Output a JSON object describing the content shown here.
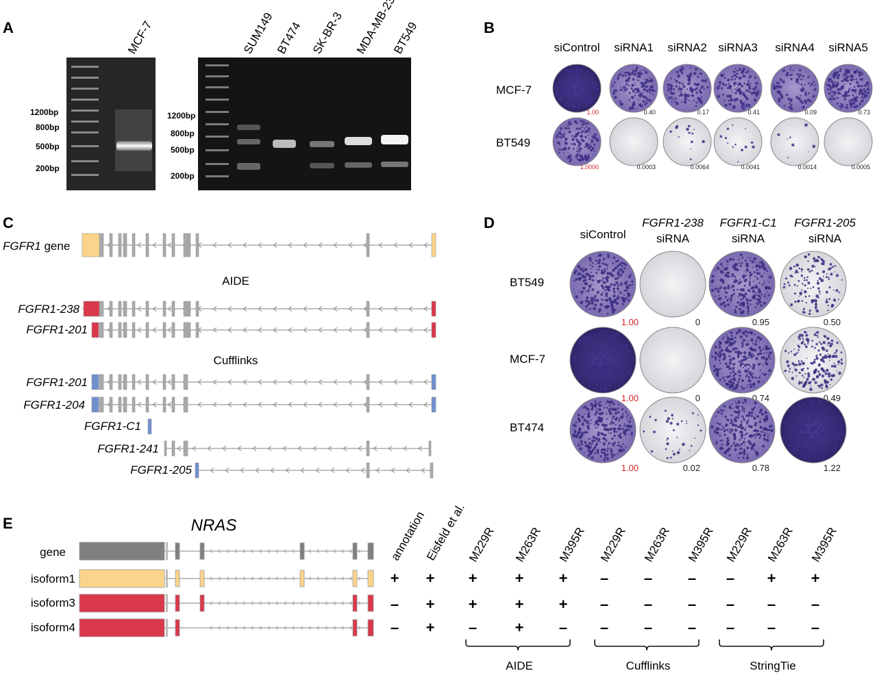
{
  "panels": {
    "a": {
      "label": "A",
      "gel1": {
        "lanes": [
          "MCF-7"
        ],
        "markers": [
          "1200bp",
          "800bp",
          "500bp",
          "200bp"
        ]
      },
      "gel2": {
        "lanes": [
          "SUM149",
          "BT474",
          "SK-BR-3",
          "MDA-MB-231",
          "BT549"
        ],
        "markers": [
          "1200bp",
          "800bp",
          "500bp",
          "200bp"
        ]
      }
    },
    "b": {
      "label": "B",
      "columns": [
        "siControl",
        "siRNA1",
        "siRNA2",
        "siRNA3",
        "siRNA4",
        "siRNA5"
      ],
      "rows": [
        {
          "name": "MCF-7",
          "values": [
            "1.00",
            "0.40",
            "0.17",
            "0.41",
            "0.09",
            "0.73"
          ]
        },
        {
          "name": "BT549",
          "values": [
            "1.0000",
            "0.0003",
            "0.0064",
            "0.0041",
            "0.0014",
            "0.0005"
          ]
        }
      ]
    },
    "c": {
      "label": "C",
      "gene_label_italic": "FGFR1",
      "gene_label_rest": " gene",
      "aide_header": "AIDE",
      "cufflinks_header": "Cufflinks",
      "aide_isoforms": [
        "FGFR1-238",
        "FGFR1-201"
      ],
      "cufflinks_isoforms": [
        "FGFR1-201",
        "FGFR1-204",
        "FGFR1-C1",
        "FGFR1-241",
        "FGFR1-205"
      ]
    },
    "d": {
      "label": "D",
      "columns": [
        {
          "line1": "siControl",
          "line2": "",
          "italic": false
        },
        {
          "line1": "FGFR1-238",
          "line2": "siRNA",
          "italic": true
        },
        {
          "line1": "FGFR1-C1",
          "line2": "siRNA",
          "italic": true
        },
        {
          "line1": "FGFR1-205",
          "line2": "siRNA",
          "italic": true
        }
      ],
      "rows": [
        {
          "name": "BT549",
          "values": [
            "1.00",
            "0",
            "0.95",
            "0.50"
          ]
        },
        {
          "name": "MCF-7",
          "values": [
            "1.00",
            "0",
            "0.74",
            "0.49"
          ]
        },
        {
          "name": "BT474",
          "values": [
            "1.00",
            "0.02",
            "0.78",
            "1.22"
          ]
        }
      ]
    },
    "e": {
      "label": "E",
      "gene_title": "NRAS",
      "rows": [
        "gene",
        "isoform1",
        "isoform3",
        "isoform4"
      ],
      "columns": [
        "annotation",
        "Eisfeld et al.",
        "M229R",
        "M263R",
        "M395R",
        "M229R",
        "M263R",
        "M395R",
        "M229R",
        "M263R",
        "M395R"
      ],
      "signs": [
        [
          "+",
          "+",
          "+",
          "+",
          "+",
          "–",
          "–",
          "–",
          "–",
          "+",
          "+"
        ],
        [
          "–",
          "+",
          "+",
          "+",
          "+",
          "–",
          "–",
          "–",
          "–",
          "–",
          "–"
        ],
        [
          "–",
          "+",
          "–",
          "+",
          "–",
          "–",
          "–",
          "–",
          "–",
          "–",
          "–"
        ]
      ],
      "groups": [
        "AIDE",
        "Cufflinks",
        "StringTie"
      ]
    }
  },
  "colors": {
    "orange": "#fcd38a",
    "red": "#d9384a",
    "blue": "#6f8fcf",
    "grey": "#a9a9a9",
    "stain": "#5b4a9e",
    "highlight_red": "#d22222"
  }
}
